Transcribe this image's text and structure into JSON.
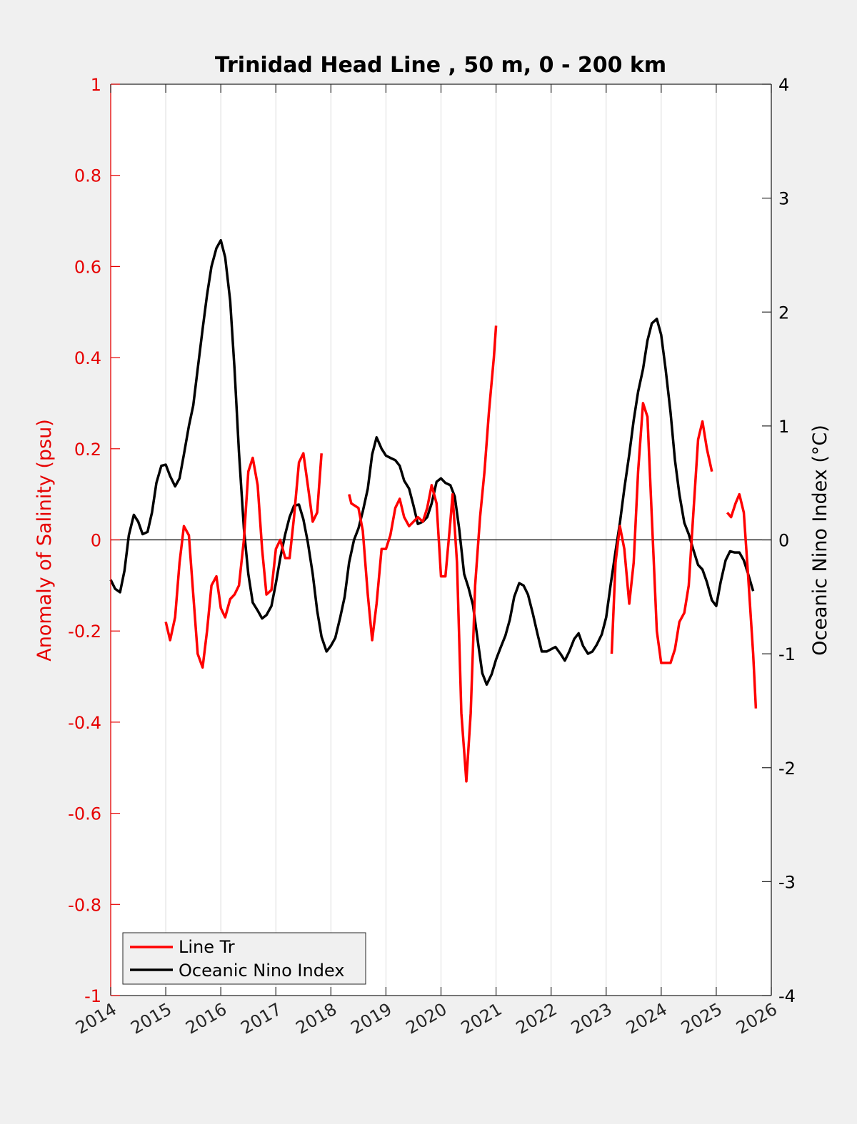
{
  "chart_data": {
    "type": "line",
    "title": "Trinidad Head Line , 50 m, 0 - 200 km",
    "xlabel": "",
    "ylabel_left": "Anomaly of Salinity (psu)",
    "ylabel_right": "Oceanic Nino Index (°C)",
    "xlim": [
      2014,
      2026
    ],
    "ylim_left": [
      -1,
      1
    ],
    "ylim_right": [
      -4,
      4
    ],
    "x_ticks": [
      "2014",
      "2015",
      "2016",
      "2017",
      "2018",
      "2019",
      "2020",
      "2021",
      "2022",
      "2023",
      "2024",
      "2025",
      "2026"
    ],
    "y_ticks_left": [
      "1",
      "0.8",
      "0.6",
      "0.4",
      "0.2",
      "0",
      "-0.2",
      "-0.4",
      "-0.6",
      "-0.8",
      "-1"
    ],
    "y_ticks_right": [
      "4",
      "3",
      "2",
      "1",
      "0",
      "-1",
      "-2",
      "-3",
      "-4"
    ],
    "grid": "x-only",
    "legend_position": "bottom-left",
    "colors": {
      "salinity": "#ff0000",
      "oni": "#000000",
      "left_axis": "#e60000"
    },
    "series": [
      {
        "name": "Line Tr",
        "axis": "left",
        "color": "#ff0000",
        "segments": [
          [
            [
              2015.0,
              -0.18
            ],
            [
              2015.08,
              -0.22
            ],
            [
              2015.17,
              -0.17
            ],
            [
              2015.25,
              -0.05
            ],
            [
              2015.33,
              0.03
            ],
            [
              2015.42,
              0.01
            ],
            [
              2015.5,
              -0.12
            ],
            [
              2015.58,
              -0.25
            ],
            [
              2015.67,
              -0.28
            ],
            [
              2015.75,
              -0.2
            ],
            [
              2015.83,
              -0.1
            ],
            [
              2015.92,
              -0.08
            ],
            [
              2016.0,
              -0.15
            ],
            [
              2016.08,
              -0.17
            ],
            [
              2016.17,
              -0.13
            ],
            [
              2016.25,
              -0.12
            ],
            [
              2016.33,
              -0.1
            ],
            [
              2016.42,
              0.0
            ],
            [
              2016.5,
              0.15
            ],
            [
              2016.58,
              0.18
            ],
            [
              2016.67,
              0.12
            ],
            [
              2016.75,
              -0.02
            ],
            [
              2016.83,
              -0.12
            ],
            [
              2016.92,
              -0.11
            ],
            [
              2017.0,
              -0.02
            ],
            [
              2017.08,
              0.0
            ],
            [
              2017.17,
              -0.04
            ],
            [
              2017.25,
              -0.04
            ],
            [
              2017.33,
              0.05
            ],
            [
              2017.42,
              0.17
            ],
            [
              2017.5,
              0.19
            ],
            [
              2017.58,
              0.12
            ],
            [
              2017.67,
              0.04
            ],
            [
              2017.75,
              0.06
            ],
            [
              2017.83,
              0.19
            ]
          ],
          [
            [
              2018.33,
              0.1
            ],
            [
              2018.37,
              0.08
            ],
            [
              2018.5,
              0.07
            ],
            [
              2018.58,
              0.02
            ],
            [
              2018.67,
              -0.12
            ],
            [
              2018.75,
              -0.22
            ],
            [
              2018.83,
              -0.14
            ],
            [
              2018.92,
              -0.02
            ],
            [
              2019.0,
              -0.02
            ],
            [
              2019.08,
              0.01
            ],
            [
              2019.17,
              0.07
            ],
            [
              2019.25,
              0.09
            ],
            [
              2019.33,
              0.05
            ],
            [
              2019.42,
              0.03
            ],
            [
              2019.5,
              0.04
            ],
            [
              2019.58,
              0.05
            ],
            [
              2019.67,
              0.04
            ],
            [
              2019.75,
              0.07
            ],
            [
              2019.83,
              0.12
            ],
            [
              2019.92,
              0.08
            ],
            [
              2020.0,
              -0.08
            ],
            [
              2020.08,
              -0.08
            ],
            [
              2020.17,
              0.04
            ],
            [
              2020.21,
              0.1
            ],
            [
              2020.29,
              -0.05
            ],
            [
              2020.37,
              -0.38
            ],
            [
              2020.46,
              -0.53
            ],
            [
              2020.54,
              -0.38
            ],
            [
              2020.62,
              -0.1
            ],
            [
              2020.71,
              0.05
            ],
            [
              2020.79,
              0.15
            ],
            [
              2020.87,
              0.28
            ],
            [
              2020.96,
              0.4
            ],
            [
              2021.0,
              0.47
            ]
          ],
          [
            [
              2023.1,
              -0.25
            ],
            [
              2023.17,
              -0.05
            ],
            [
              2023.25,
              0.03
            ],
            [
              2023.33,
              -0.02
            ],
            [
              2023.42,
              -0.14
            ],
            [
              2023.5,
              -0.05
            ],
            [
              2023.58,
              0.15
            ],
            [
              2023.67,
              0.3
            ],
            [
              2023.75,
              0.27
            ],
            [
              2023.83,
              0.05
            ],
            [
              2023.92,
              -0.2
            ],
            [
              2024.0,
              -0.27
            ],
            [
              2024.08,
              -0.27
            ],
            [
              2024.17,
              -0.27
            ],
            [
              2024.25,
              -0.24
            ],
            [
              2024.33,
              -0.18
            ],
            [
              2024.42,
              -0.16
            ],
            [
              2024.5,
              -0.1
            ],
            [
              2024.58,
              0.05
            ],
            [
              2024.67,
              0.22
            ],
            [
              2024.75,
              0.26
            ],
            [
              2024.83,
              0.2
            ],
            [
              2024.92,
              0.15
            ]
          ],
          [
            [
              2025.2,
              0.06
            ],
            [
              2025.27,
              0.05
            ],
            [
              2025.35,
              0.08
            ],
            [
              2025.42,
              0.1
            ],
            [
              2025.5,
              0.06
            ],
            [
              2025.58,
              -0.08
            ],
            [
              2025.67,
              -0.25
            ],
            [
              2025.72,
              -0.37
            ]
          ]
        ]
      },
      {
        "name": "Oceanic Nino Index",
        "axis": "right",
        "color": "#000000",
        "segments": [
          [
            [
              2014.0,
              -0.35
            ],
            [
              2014.08,
              -0.43
            ],
            [
              2014.17,
              -0.46
            ],
            [
              2014.25,
              -0.27
            ],
            [
              2014.33,
              0.04
            ],
            [
              2014.42,
              0.22
            ],
            [
              2014.5,
              0.16
            ],
            [
              2014.58,
              0.05
            ],
            [
              2014.67,
              0.07
            ],
            [
              2014.75,
              0.24
            ],
            [
              2014.83,
              0.5
            ],
            [
              2014.92,
              0.65
            ],
            [
              2015.0,
              0.66
            ],
            [
              2015.08,
              0.56
            ],
            [
              2015.17,
              0.47
            ],
            [
              2015.25,
              0.54
            ],
            [
              2015.33,
              0.75
            ],
            [
              2015.42,
              1.0
            ],
            [
              2015.5,
              1.18
            ],
            [
              2015.58,
              1.5
            ],
            [
              2015.67,
              1.85
            ],
            [
              2015.75,
              2.15
            ],
            [
              2015.83,
              2.4
            ],
            [
              2015.92,
              2.56
            ],
            [
              2016.0,
              2.63
            ],
            [
              2016.08,
              2.48
            ],
            [
              2016.17,
              2.1
            ],
            [
              2016.25,
              1.5
            ],
            [
              2016.33,
              0.77
            ],
            [
              2016.42,
              0.1
            ],
            [
              2016.5,
              -0.3
            ],
            [
              2016.58,
              -0.55
            ],
            [
              2016.67,
              -0.62
            ],
            [
              2016.75,
              -0.69
            ],
            [
              2016.83,
              -0.66
            ],
            [
              2016.92,
              -0.58
            ],
            [
              2017.0,
              -0.38
            ],
            [
              2017.08,
              -0.16
            ],
            [
              2017.17,
              0.05
            ],
            [
              2017.25,
              0.2
            ],
            [
              2017.33,
              0.3
            ],
            [
              2017.42,
              0.31
            ],
            [
              2017.5,
              0.18
            ],
            [
              2017.58,
              -0.02
            ],
            [
              2017.67,
              -0.3
            ],
            [
              2017.75,
              -0.62
            ],
            [
              2017.83,
              -0.85
            ],
            [
              2017.92,
              -0.98
            ],
            [
              2018.0,
              -0.93
            ],
            [
              2018.08,
              -0.86
            ],
            [
              2018.17,
              -0.68
            ],
            [
              2018.25,
              -0.5
            ],
            [
              2018.33,
              -0.2
            ],
            [
              2018.42,
              0.0
            ],
            [
              2018.5,
              0.1
            ],
            [
              2018.58,
              0.25
            ],
            [
              2018.67,
              0.45
            ],
            [
              2018.75,
              0.75
            ],
            [
              2018.83,
              0.9
            ],
            [
              2018.92,
              0.8
            ],
            [
              2019.0,
              0.74
            ],
            [
              2019.08,
              0.72
            ],
            [
              2019.17,
              0.7
            ],
            [
              2019.25,
              0.65
            ],
            [
              2019.33,
              0.52
            ],
            [
              2019.42,
              0.45
            ],
            [
              2019.5,
              0.3
            ],
            [
              2019.58,
              0.14
            ],
            [
              2019.67,
              0.16
            ],
            [
              2019.75,
              0.2
            ],
            [
              2019.83,
              0.32
            ],
            [
              2019.92,
              0.51
            ],
            [
              2020.0,
              0.54
            ],
            [
              2020.08,
              0.5
            ],
            [
              2020.17,
              0.48
            ],
            [
              2020.25,
              0.38
            ],
            [
              2020.33,
              0.1
            ],
            [
              2020.42,
              -0.3
            ],
            [
              2020.5,
              -0.42
            ],
            [
              2020.58,
              -0.57
            ],
            [
              2020.67,
              -0.89
            ],
            [
              2020.75,
              -1.17
            ],
            [
              2020.83,
              -1.27
            ],
            [
              2020.92,
              -1.18
            ],
            [
              2021.0,
              -1.05
            ],
            [
              2021.08,
              -0.95
            ],
            [
              2021.17,
              -0.84
            ],
            [
              2021.25,
              -0.7
            ],
            [
              2021.33,
              -0.5
            ],
            [
              2021.42,
              -0.38
            ],
            [
              2021.5,
              -0.4
            ],
            [
              2021.58,
              -0.48
            ],
            [
              2021.67,
              -0.65
            ],
            [
              2021.75,
              -0.82
            ],
            [
              2021.83,
              -0.98
            ],
            [
              2021.92,
              -0.98
            ],
            [
              2022.0,
              -0.96
            ],
            [
              2022.08,
              -0.94
            ],
            [
              2022.17,
              -1.0
            ],
            [
              2022.25,
              -1.06
            ],
            [
              2022.33,
              -0.98
            ],
            [
              2022.42,
              -0.87
            ],
            [
              2022.5,
              -0.82
            ],
            [
              2022.58,
              -0.93
            ],
            [
              2022.67,
              -1.0
            ],
            [
              2022.75,
              -0.98
            ],
            [
              2022.83,
              -0.92
            ],
            [
              2022.92,
              -0.83
            ],
            [
              2023.0,
              -0.68
            ],
            [
              2023.08,
              -0.4
            ],
            [
              2023.17,
              -0.1
            ],
            [
              2023.25,
              0.15
            ],
            [
              2023.33,
              0.45
            ],
            [
              2023.42,
              0.75
            ],
            [
              2023.5,
              1.05
            ],
            [
              2023.58,
              1.3
            ],
            [
              2023.67,
              1.5
            ],
            [
              2023.75,
              1.75
            ],
            [
              2023.83,
              1.9
            ],
            [
              2023.92,
              1.94
            ],
            [
              2024.0,
              1.8
            ],
            [
              2024.08,
              1.5
            ],
            [
              2024.17,
              1.12
            ],
            [
              2024.25,
              0.7
            ],
            [
              2024.33,
              0.4
            ],
            [
              2024.42,
              0.15
            ],
            [
              2024.5,
              0.05
            ],
            [
              2024.58,
              -0.08
            ],
            [
              2024.67,
              -0.22
            ],
            [
              2024.75,
              -0.26
            ],
            [
              2024.83,
              -0.37
            ],
            [
              2024.92,
              -0.53
            ],
            [
              2025.0,
              -0.58
            ],
            [
              2025.08,
              -0.37
            ],
            [
              2025.17,
              -0.18
            ],
            [
              2025.25,
              -0.1
            ],
            [
              2025.33,
              -0.11
            ],
            [
              2025.42,
              -0.11
            ],
            [
              2025.5,
              -0.18
            ],
            [
              2025.58,
              -0.3
            ],
            [
              2025.67,
              -0.45
            ]
          ]
        ]
      }
    ]
  }
}
